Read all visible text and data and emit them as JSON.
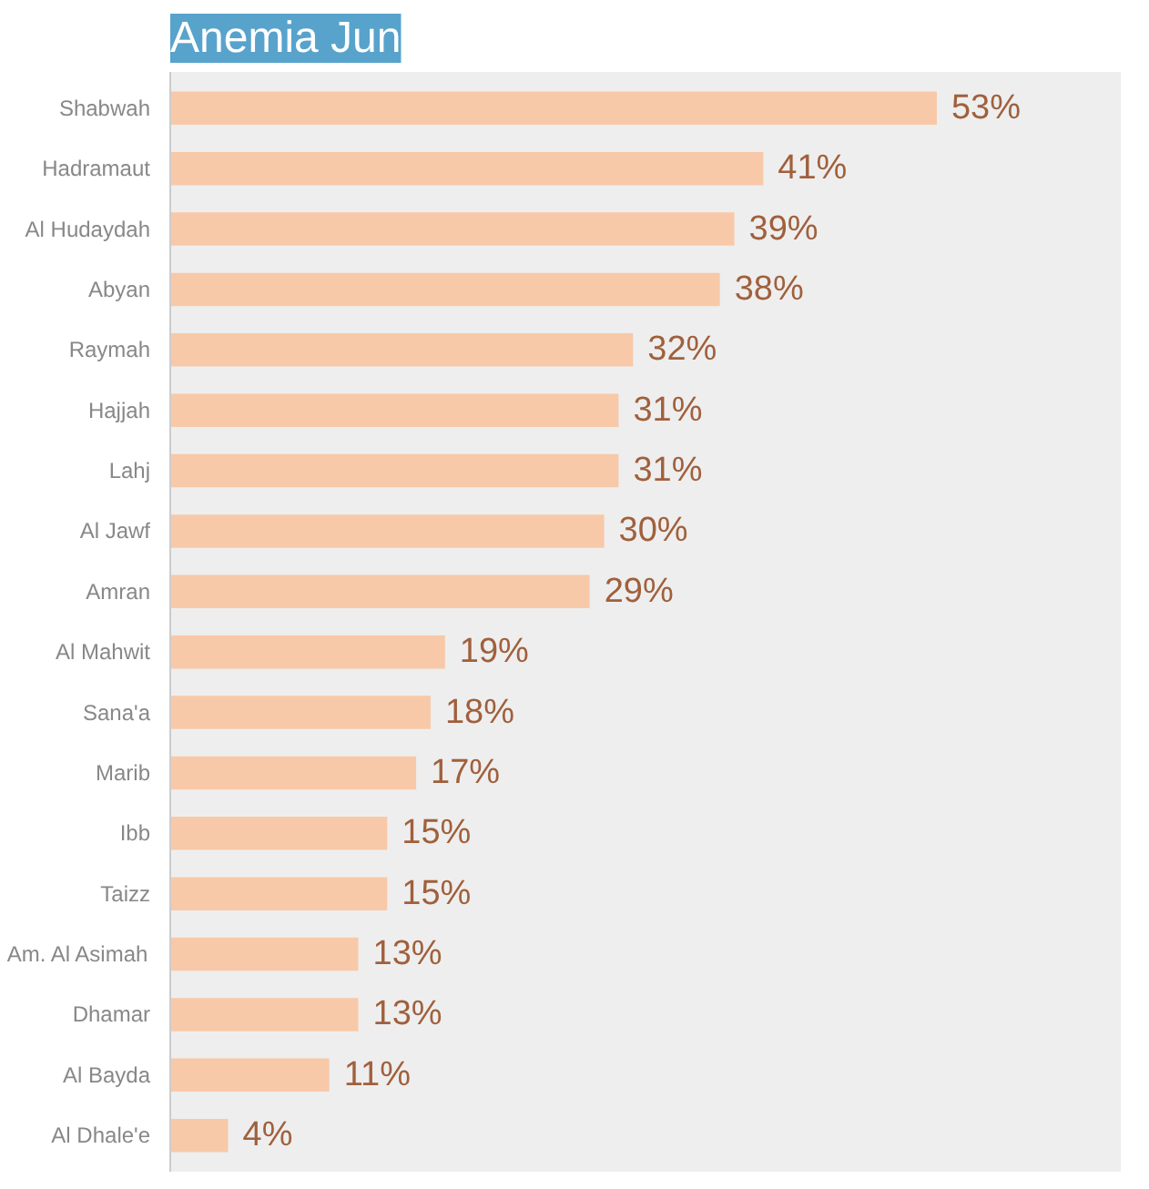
{
  "chart_data": {
    "type": "bar",
    "orientation": "horizontal",
    "title": "Anemia Jun",
    "categories": [
      "Shabwah",
      "Hadramaut",
      "Al Hudaydah",
      "Abyan",
      "Raymah",
      "Hajjah",
      "Lahj",
      "Al Jawf",
      "Amran",
      "Al Mahwit",
      "Sana'a",
      "Marib",
      "Ibb",
      "Taizz",
      "Am. Al Asimah",
      "Dhamar",
      "Al Bayda",
      "Al Dhale'e"
    ],
    "values": [
      53,
      41,
      39,
      38,
      32,
      31,
      31,
      30,
      29,
      19,
      18,
      17,
      15,
      15,
      13,
      13,
      11,
      4
    ],
    "value_labels": [
      "53%",
      "41%",
      "39%",
      "38%",
      "32%",
      "31%",
      "31%",
      "30%",
      "29%",
      "19%",
      "18%",
      "17%",
      "15%",
      "15%",
      "13%",
      "13%",
      "11%",
      "4%"
    ],
    "color": "#f8c9a8",
    "grid": false
  }
}
